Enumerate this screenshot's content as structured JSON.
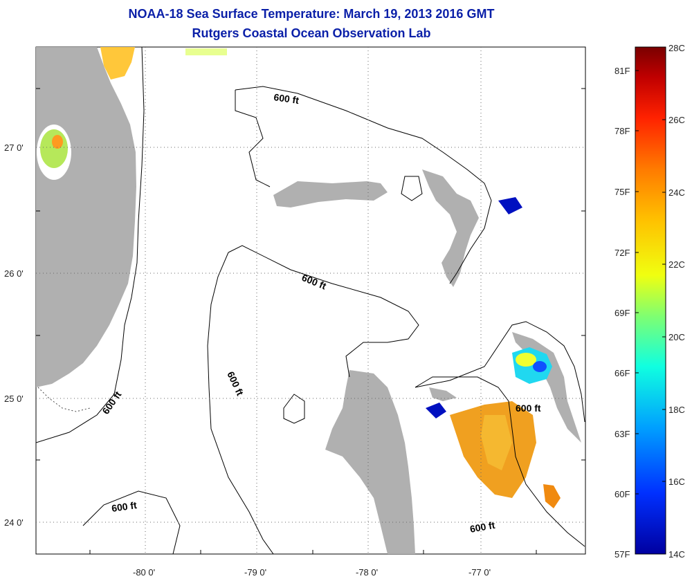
{
  "title": "NOAA-18 Sea Surface Temperature:  March 19, 2013 2016 GMT",
  "subtitle": "Rutgers Coastal Ocean Observation Lab",
  "map": {
    "x_axis_labels": [
      "-80 0'",
      "-79 0'",
      "-78 0'",
      "-77 0'"
    ],
    "y_axis_labels": [
      "27 0'",
      "26 0'",
      "25 0'",
      "24 0'"
    ],
    "contour_labels": [
      "600 ft",
      "600 ft",
      "600 ft",
      "600 ft",
      "600 ft",
      "600 ft"
    ],
    "land_color": "#b0b0b0",
    "ocean_color": "#ffffff"
  },
  "colorbar": {
    "fahrenheit_labels": [
      "81F",
      "78F",
      "75F",
      "72F",
      "69F",
      "66F",
      "63F",
      "60F",
      "57F"
    ],
    "celsius_labels": [
      "28C",
      "26C",
      "24C",
      "22C",
      "20C",
      "18C",
      "16C",
      "14C"
    ],
    "colors": [
      "#7a0000",
      "#c00000",
      "#ff2200",
      "#ff7a00",
      "#ffc000",
      "#f0ff10",
      "#80ff70",
      "#10ffe0",
      "#00a0ff",
      "#0030ff",
      "#0000a0"
    ]
  }
}
